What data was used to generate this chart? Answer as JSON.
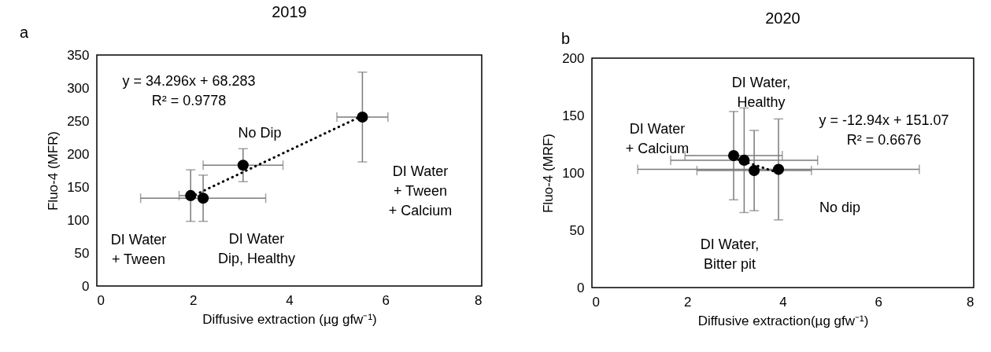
{
  "chart_data": [
    {
      "type": "scatter",
      "title": "2019",
      "xlabel": "Diffusive extraction (µg gfw⁻¹)",
      "ylabel": "Fluo-4 (MFR)",
      "xlim": [
        0,
        8
      ],
      "xticks": [
        0,
        2,
        4,
        6,
        8
      ],
      "ylim": [
        0,
        350
      ],
      "yticks": [
        0,
        50,
        100,
        150,
        200,
        250,
        300,
        350
      ],
      "grid": false,
      "series": [
        {
          "marker": "circle",
          "color": "#000000",
          "x": [
            1.95,
            2.21,
            3.04,
            5.52
          ],
          "values": [
            137,
            133,
            183,
            256
          ],
          "errors": [
            39,
            35,
            25,
            68
          ],
          "xerrors": [
            0.24,
            1.3,
            0.83,
            0.53
          ]
        },
        {
          "type": "line",
          "line_style": "dotted",
          "color": "#000000",
          "x": [
            1.95,
            5.52
          ],
          "values": [
            135,
            258
          ]
        }
      ],
      "annotations": [
        "a",
        "y = 34.296x + 68.283\nR² = 0.9778",
        "DI Water\n+ Tween",
        "DI Water\nDip, Healthy",
        "No Dip",
        "DI Water\n+ Tween\n+ Calcium"
      ]
    },
    {
      "type": "scatter",
      "title": "2020",
      "xlabel": "Diffusive extraction(µg gfw⁻¹)",
      "ylabel": "Fluo-4 (MRF)",
      "xlim": [
        0,
        8
      ],
      "xticks": [
        0,
        2,
        4,
        6,
        8
      ],
      "ylim": [
        0,
        200
      ],
      "yticks": [
        0,
        50,
        100,
        150,
        200
      ],
      "grid": false,
      "series": [
        {
          "marker": "circle",
          "color": "#000000",
          "x": [
            2.97,
            3.19,
            3.4,
            3.91
          ],
          "values": [
            115,
            111,
            102,
            103
          ],
          "errors": [
            38.5,
            45.6,
            35,
            44
          ],
          "xerrors": [
            1.02,
            1.54,
            1.2,
            2.95
          ]
        },
        {
          "type": "line",
          "line_style": "dotted",
          "color": "#000000",
          "x": [
            2.97,
            3.91
          ],
          "values": [
            113,
            100
          ]
        }
      ],
      "annotations": [
        "b",
        "y = -12.94x + 151.07\nR² = 0.6676",
        "DI Water\n+ Calcium",
        "DI Water,\nHealthy",
        "DI Water,\nBitter pit",
        "No dip"
      ]
    }
  ]
}
